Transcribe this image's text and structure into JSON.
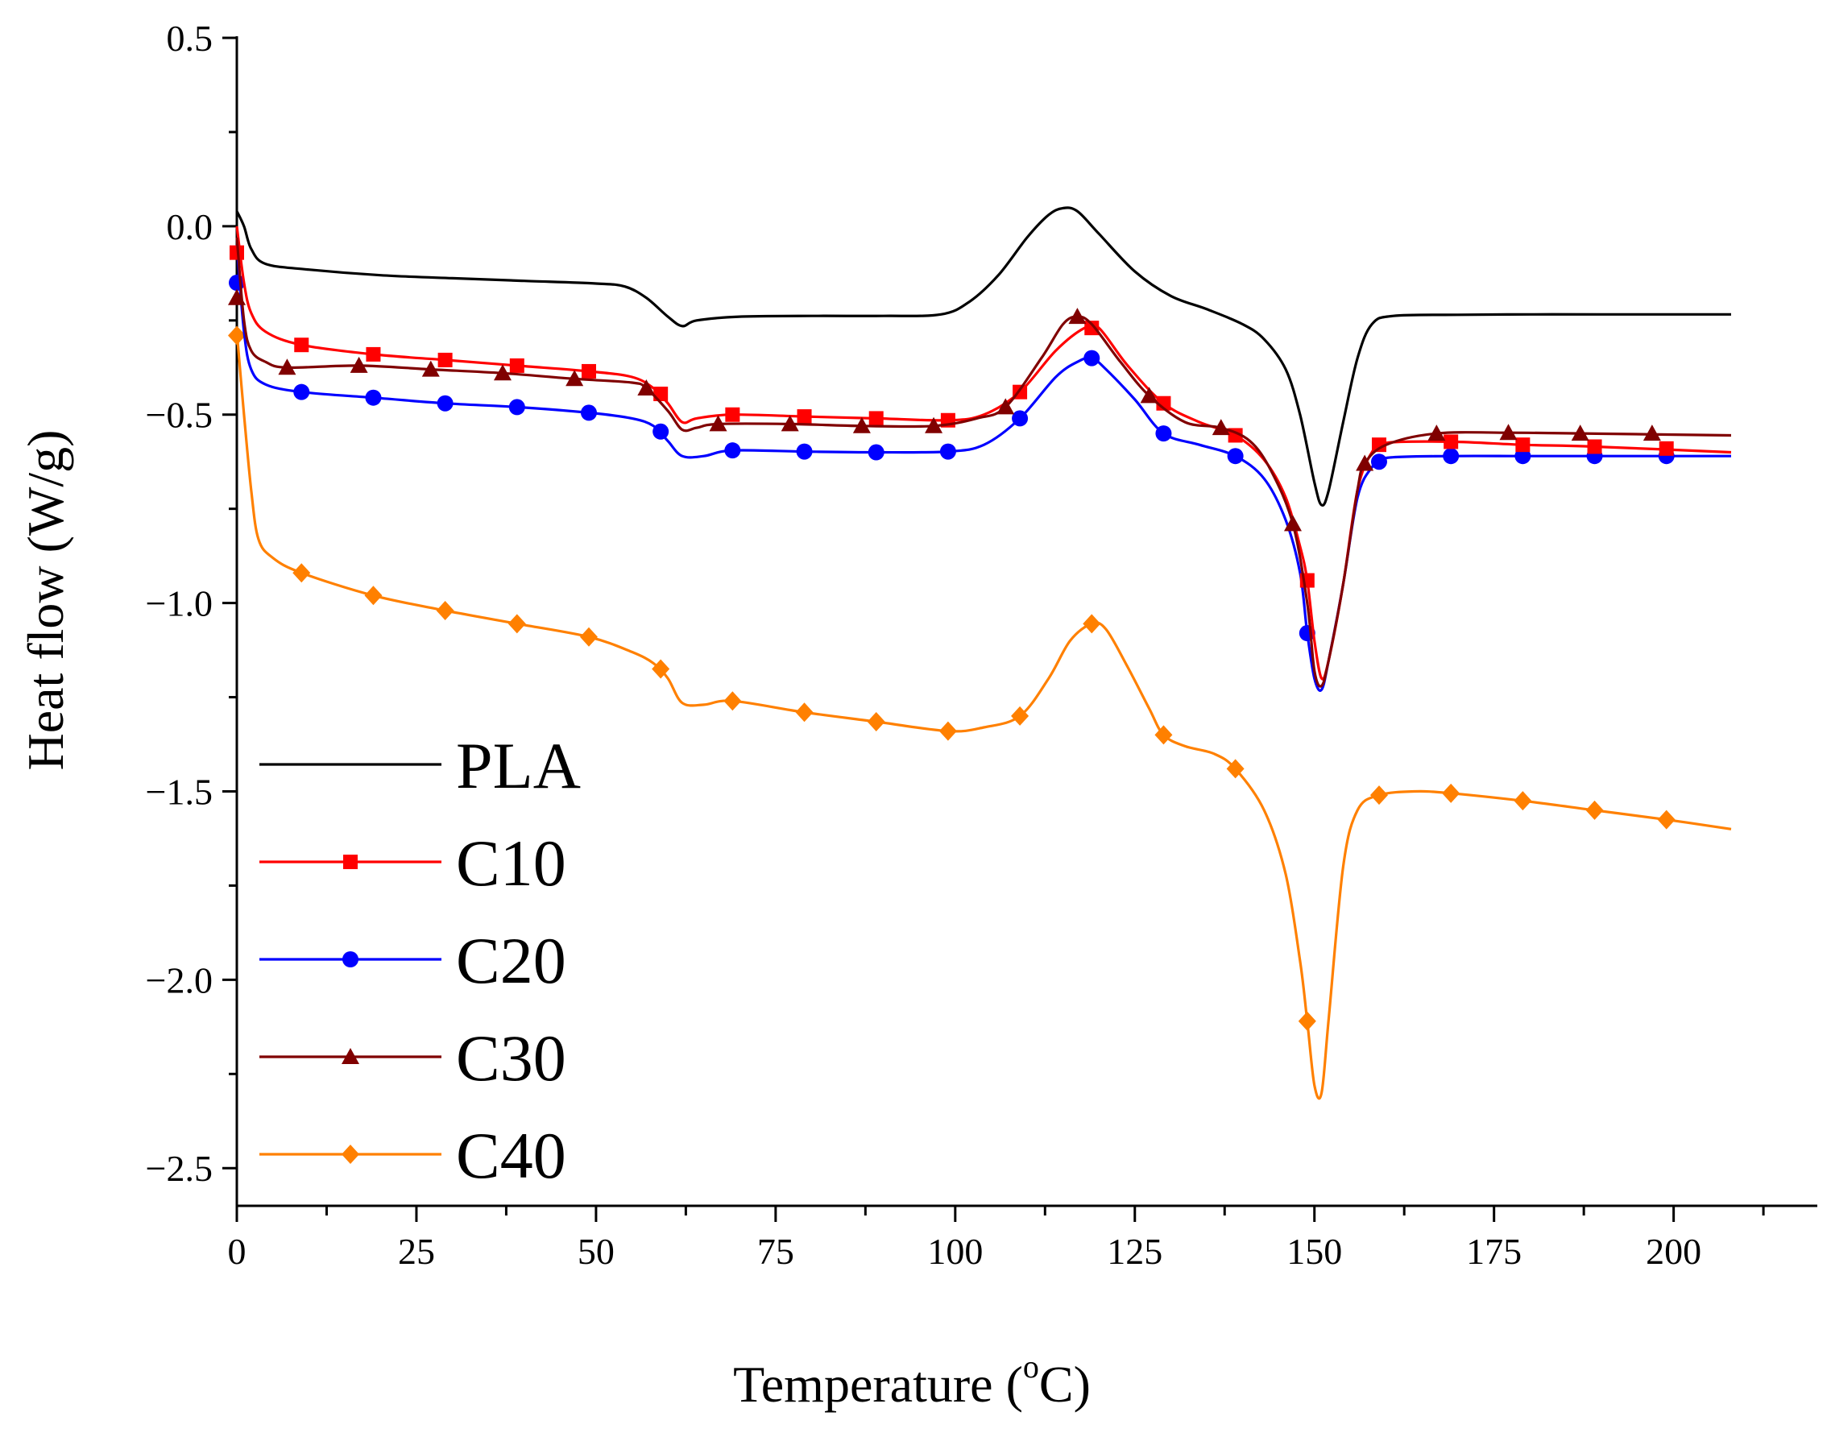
{
  "chart_data": {
    "type": "line",
    "title": "",
    "xlabel": "Temperature (",
    "xlabel_sup": "o",
    "xlabel_suffix": "C)",
    "ylabel": "Heat flow (W/g)",
    "xlim": [
      0,
      220
    ],
    "ylim": [
      -2.6,
      0.5
    ],
    "x_ticks": [
      0,
      25,
      50,
      75,
      100,
      125,
      150,
      175,
      200
    ],
    "y_ticks": [
      0.5,
      0.0,
      -0.5,
      -1.0,
      -1.5,
      -2.0,
      -2.5
    ],
    "x_tick_labels": [
      "0",
      "25",
      "50",
      "75",
      "100",
      "125",
      "150",
      "175",
      "200"
    ],
    "y_tick_labels": [
      "0.5",
      "0.0",
      "−0.5",
      "−1.0",
      "−1.5",
      "−2.0",
      "−2.5"
    ],
    "legend_position": "bottom-left",
    "series": [
      {
        "name": "PLA",
        "color": "#000000",
        "marker": "none",
        "points": [
          [
            0,
            0.04
          ],
          [
            1,
            0.0
          ],
          [
            2,
            -0.06
          ],
          [
            4,
            -0.1
          ],
          [
            10,
            -0.115
          ],
          [
            20,
            -0.13
          ],
          [
            30,
            -0.138
          ],
          [
            40,
            -0.145
          ],
          [
            50,
            -0.152
          ],
          [
            54,
            -0.16
          ],
          [
            57,
            -0.19
          ],
          [
            60,
            -0.24
          ],
          [
            62,
            -0.265
          ],
          [
            64,
            -0.25
          ],
          [
            70,
            -0.24
          ],
          [
            80,
            -0.238
          ],
          [
            90,
            -0.238
          ],
          [
            98,
            -0.234
          ],
          [
            102,
            -0.2
          ],
          [
            106,
            -0.13
          ],
          [
            110,
            -0.03
          ],
          [
            113,
            0.03
          ],
          [
            115,
            0.048
          ],
          [
            117,
            0.04
          ],
          [
            120,
            -0.02
          ],
          [
            125,
            -0.12
          ],
          [
            130,
            -0.185
          ],
          [
            135,
            -0.22
          ],
          [
            140,
            -0.26
          ],
          [
            143,
            -0.3
          ],
          [
            146,
            -0.38
          ],
          [
            148,
            -0.5
          ],
          [
            150,
            -0.68
          ],
          [
            151,
            -0.74
          ],
          [
            152,
            -0.7
          ],
          [
            154,
            -0.52
          ],
          [
            156,
            -0.35
          ],
          [
            158,
            -0.26
          ],
          [
            161,
            -0.238
          ],
          [
            170,
            -0.235
          ],
          [
            180,
            -0.234
          ],
          [
            190,
            -0.234
          ],
          [
            208,
            -0.234
          ]
        ],
        "markers": []
      },
      {
        "name": "C10",
        "color": "#ff0000",
        "marker": "square",
        "points": [
          [
            0,
            0.0
          ],
          [
            1,
            -0.15
          ],
          [
            2,
            -0.23
          ],
          [
            4,
            -0.28
          ],
          [
            9,
            -0.315
          ],
          [
            19,
            -0.34
          ],
          [
            29,
            -0.355
          ],
          [
            39,
            -0.37
          ],
          [
            49,
            -0.385
          ],
          [
            55,
            -0.4
          ],
          [
            58,
            -0.43
          ],
          [
            60,
            -0.47
          ],
          [
            62,
            -0.52
          ],
          [
            64,
            -0.51
          ],
          [
            69,
            -0.5
          ],
          [
            79,
            -0.505
          ],
          [
            89,
            -0.51
          ],
          [
            99,
            -0.515
          ],
          [
            104,
            -0.5
          ],
          [
            109,
            -0.44
          ],
          [
            114,
            -0.33
          ],
          [
            118,
            -0.27
          ],
          [
            120,
            -0.27
          ],
          [
            124,
            -0.37
          ],
          [
            129,
            -0.47
          ],
          [
            134,
            -0.52
          ],
          [
            139,
            -0.555
          ],
          [
            143,
            -0.62
          ],
          [
            146,
            -0.72
          ],
          [
            148,
            -0.85
          ],
          [
            149,
            -0.94
          ],
          [
            150,
            -1.1
          ],
          [
            151,
            -1.2
          ],
          [
            152,
            -1.15
          ],
          [
            154,
            -0.95
          ],
          [
            156,
            -0.7
          ],
          [
            158,
            -0.6
          ],
          [
            160,
            -0.575
          ],
          [
            169,
            -0.572
          ],
          [
            179,
            -0.58
          ],
          [
            189,
            -0.585
          ],
          [
            208,
            -0.6
          ]
        ],
        "markers": [
          [
            0,
            -0.07
          ],
          [
            9,
            -0.315
          ],
          [
            19,
            -0.34
          ],
          [
            29,
            -0.355
          ],
          [
            39,
            -0.37
          ],
          [
            49,
            -0.385
          ],
          [
            59,
            -0.445
          ],
          [
            69,
            -0.5
          ],
          [
            79,
            -0.505
          ],
          [
            89,
            -0.51
          ],
          [
            99,
            -0.515
          ],
          [
            109,
            -0.44
          ],
          [
            119,
            -0.27
          ],
          [
            129,
            -0.47
          ],
          [
            139,
            -0.555
          ],
          [
            149,
            -0.94
          ],
          [
            159,
            -0.58
          ],
          [
            169,
            -0.572
          ],
          [
            179,
            -0.58
          ],
          [
            189,
            -0.585
          ],
          [
            199,
            -0.59
          ]
        ]
      },
      {
        "name": "C20",
        "color": "#0000ff",
        "marker": "circle",
        "points": [
          [
            0,
            -0.05
          ],
          [
            1,
            -0.28
          ],
          [
            2,
            -0.38
          ],
          [
            4,
            -0.42
          ],
          [
            9,
            -0.44
          ],
          [
            19,
            -0.455
          ],
          [
            29,
            -0.47
          ],
          [
            39,
            -0.48
          ],
          [
            49,
            -0.495
          ],
          [
            55,
            -0.51
          ],
          [
            58,
            -0.53
          ],
          [
            60,
            -0.57
          ],
          [
            62,
            -0.61
          ],
          [
            65,
            -0.61
          ],
          [
            69,
            -0.595
          ],
          [
            79,
            -0.598
          ],
          [
            89,
            -0.6
          ],
          [
            99,
            -0.598
          ],
          [
            104,
            -0.58
          ],
          [
            109,
            -0.51
          ],
          [
            114,
            -0.4
          ],
          [
            117,
            -0.36
          ],
          [
            119,
            -0.35
          ],
          [
            121,
            -0.38
          ],
          [
            125,
            -0.46
          ],
          [
            129,
            -0.55
          ],
          [
            134,
            -0.58
          ],
          [
            139,
            -0.61
          ],
          [
            143,
            -0.67
          ],
          [
            146,
            -0.78
          ],
          [
            148,
            -0.92
          ],
          [
            149,
            -1.08
          ],
          [
            150,
            -1.2
          ],
          [
            151,
            -1.23
          ],
          [
            152,
            -1.15
          ],
          [
            154,
            -0.95
          ],
          [
            156,
            -0.72
          ],
          [
            158,
            -0.64
          ],
          [
            160,
            -0.615
          ],
          [
            169,
            -0.61
          ],
          [
            179,
            -0.61
          ],
          [
            189,
            -0.61
          ],
          [
            208,
            -0.61
          ]
        ],
        "markers": [
          [
            0,
            -0.15
          ],
          [
            9,
            -0.44
          ],
          [
            19,
            -0.455
          ],
          [
            29,
            -0.47
          ],
          [
            39,
            -0.48
          ],
          [
            49,
            -0.495
          ],
          [
            59,
            -0.545
          ],
          [
            69,
            -0.595
          ],
          [
            79,
            -0.598
          ],
          [
            89,
            -0.6
          ],
          [
            99,
            -0.598
          ],
          [
            109,
            -0.51
          ],
          [
            119,
            -0.35
          ],
          [
            129,
            -0.55
          ],
          [
            139,
            -0.61
          ],
          [
            149,
            -1.08
          ],
          [
            159,
            -0.625
          ],
          [
            169,
            -0.61
          ],
          [
            179,
            -0.61
          ],
          [
            189,
            -0.61
          ],
          [
            199,
            -0.61
          ]
        ]
      },
      {
        "name": "C30",
        "color": "#800000",
        "marker": "triangle",
        "points": [
          [
            0,
            -0.03
          ],
          [
            1,
            -0.25
          ],
          [
            2,
            -0.33
          ],
          [
            4,
            -0.36
          ],
          [
            7,
            -0.375
          ],
          [
            17,
            -0.37
          ],
          [
            27,
            -0.38
          ],
          [
            37,
            -0.39
          ],
          [
            47,
            -0.405
          ],
          [
            55,
            -0.415
          ],
          [
            57,
            -0.43
          ],
          [
            60,
            -0.49
          ],
          [
            62,
            -0.54
          ],
          [
            64,
            -0.535
          ],
          [
            67,
            -0.525
          ],
          [
            77,
            -0.525
          ],
          [
            87,
            -0.53
          ],
          [
            97,
            -0.53
          ],
          [
            103,
            -0.51
          ],
          [
            107,
            -0.48
          ],
          [
            112,
            -0.35
          ],
          [
            115,
            -0.26
          ],
          [
            117,
            -0.24
          ],
          [
            119,
            -0.26
          ],
          [
            123,
            -0.36
          ],
          [
            127,
            -0.45
          ],
          [
            132,
            -0.52
          ],
          [
            137,
            -0.535
          ],
          [
            141,
            -0.57
          ],
          [
            144,
            -0.65
          ],
          [
            147,
            -0.79
          ],
          [
            149,
            -1.0
          ],
          [
            150,
            -1.18
          ],
          [
            151,
            -1.22
          ],
          [
            152,
            -1.15
          ],
          [
            154,
            -0.95
          ],
          [
            156,
            -0.7
          ],
          [
            157,
            -0.63
          ],
          [
            160,
            -0.58
          ],
          [
            167,
            -0.55
          ],
          [
            177,
            -0.548
          ],
          [
            187,
            -0.55
          ],
          [
            208,
            -0.555
          ]
        ],
        "markers": [
          [
            0,
            -0.19
          ],
          [
            7,
            -0.375
          ],
          [
            17,
            -0.37
          ],
          [
            27,
            -0.38
          ],
          [
            37,
            -0.39
          ],
          [
            47,
            -0.405
          ],
          [
            57,
            -0.43
          ],
          [
            67,
            -0.525
          ],
          [
            77,
            -0.525
          ],
          [
            87,
            -0.53
          ],
          [
            97,
            -0.53
          ],
          [
            107,
            -0.48
          ],
          [
            117,
            -0.24
          ],
          [
            127,
            -0.45
          ],
          [
            137,
            -0.535
          ],
          [
            147,
            -0.79
          ],
          [
            157,
            -0.63
          ],
          [
            167,
            -0.55
          ],
          [
            177,
            -0.548
          ],
          [
            187,
            -0.55
          ],
          [
            197,
            -0.55
          ]
        ]
      },
      {
        "name": "C40",
        "color": "#ff8000",
        "marker": "diamond",
        "points": [
          [
            0,
            -0.28
          ],
          [
            1,
            -0.5
          ],
          [
            2,
            -0.7
          ],
          [
            3,
            -0.83
          ],
          [
            5,
            -0.88
          ],
          [
            9,
            -0.92
          ],
          [
            19,
            -0.98
          ],
          [
            29,
            -1.02
          ],
          [
            39,
            -1.055
          ],
          [
            49,
            -1.09
          ],
          [
            55,
            -1.13
          ],
          [
            58,
            -1.16
          ],
          [
            60,
            -1.2
          ],
          [
            62,
            -1.265
          ],
          [
            65,
            -1.27
          ],
          [
            69,
            -1.26
          ],
          [
            79,
            -1.29
          ],
          [
            89,
            -1.315
          ],
          [
            99,
            -1.34
          ],
          [
            104,
            -1.33
          ],
          [
            109,
            -1.3
          ],
          [
            113,
            -1.2
          ],
          [
            116,
            -1.1
          ],
          [
            119,
            -1.055
          ],
          [
            121,
            -1.07
          ],
          [
            124,
            -1.17
          ],
          [
            127,
            -1.28
          ],
          [
            129,
            -1.35
          ],
          [
            132,
            -1.38
          ],
          [
            136,
            -1.4
          ],
          [
            139,
            -1.44
          ],
          [
            143,
            -1.55
          ],
          [
            146,
            -1.72
          ],
          [
            148,
            -1.95
          ],
          [
            149,
            -2.11
          ],
          [
            150,
            -2.28
          ],
          [
            151,
            -2.3
          ],
          [
            152,
            -2.1
          ],
          [
            154,
            -1.7
          ],
          [
            156,
            -1.55
          ],
          [
            159,
            -1.51
          ],
          [
            164,
            -1.5
          ],
          [
            169,
            -1.505
          ],
          [
            179,
            -1.525
          ],
          [
            189,
            -1.55
          ],
          [
            199,
            -1.575
          ],
          [
            208,
            -1.6
          ]
        ],
        "markers": [
          [
            0,
            -0.29
          ],
          [
            9,
            -0.92
          ],
          [
            19,
            -0.98
          ],
          [
            29,
            -1.02
          ],
          [
            39,
            -1.055
          ],
          [
            49,
            -1.09
          ],
          [
            59,
            -1.175
          ],
          [
            69,
            -1.26
          ],
          [
            79,
            -1.29
          ],
          [
            89,
            -1.315
          ],
          [
            99,
            -1.34
          ],
          [
            109,
            -1.3
          ],
          [
            119,
            -1.055
          ],
          [
            129,
            -1.35
          ],
          [
            139,
            -1.44
          ],
          [
            149,
            -2.11
          ],
          [
            159,
            -1.51
          ],
          [
            169,
            -1.505
          ],
          [
            179,
            -1.525
          ],
          [
            189,
            -1.55
          ],
          [
            199,
            -1.575
          ]
        ]
      }
    ]
  }
}
